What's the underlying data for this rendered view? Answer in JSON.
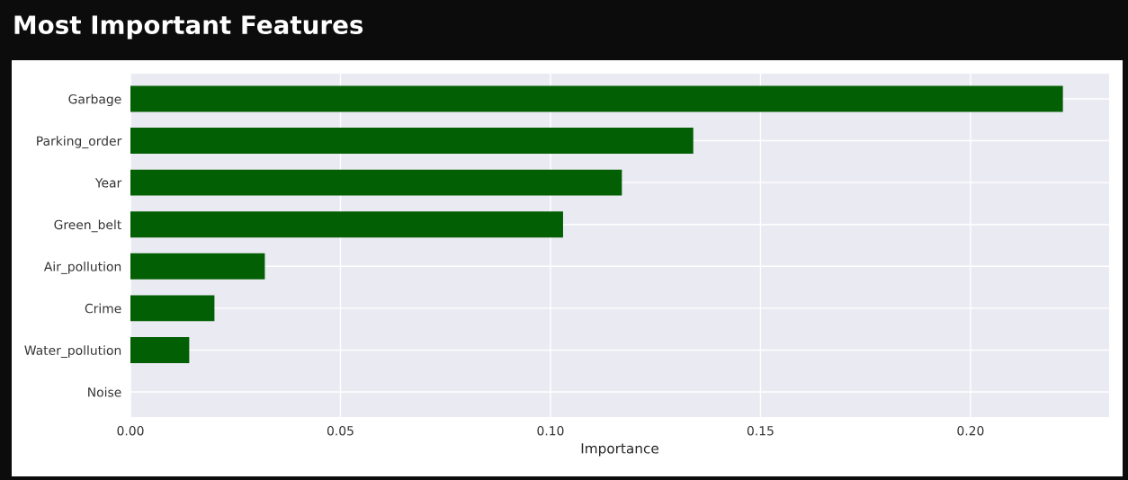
{
  "chart_data": {
    "type": "bar",
    "orientation": "horizontal",
    "title": "Most Important Features",
    "xlabel": "Importance",
    "categories": [
      "Garbage",
      "Parking_order",
      "Year",
      "Green_belt",
      "Air_pollution",
      "Crime",
      "Water_pollution",
      "Noise"
    ],
    "values": [
      0.222,
      0.134,
      0.117,
      0.103,
      0.032,
      0.02,
      0.014,
      0
    ],
    "color": "#035f03",
    "xlim": [
      0,
      0.233
    ],
    "xticks": [
      {
        "value": 0,
        "label": "0.00"
      },
      {
        "value": 0.05,
        "label": "0.05"
      },
      {
        "value": 0.1,
        "label": "0.10"
      },
      {
        "value": 0.15,
        "label": "0.15"
      },
      {
        "value": 0.2,
        "label": "0.20"
      }
    ],
    "grid": true
  }
}
